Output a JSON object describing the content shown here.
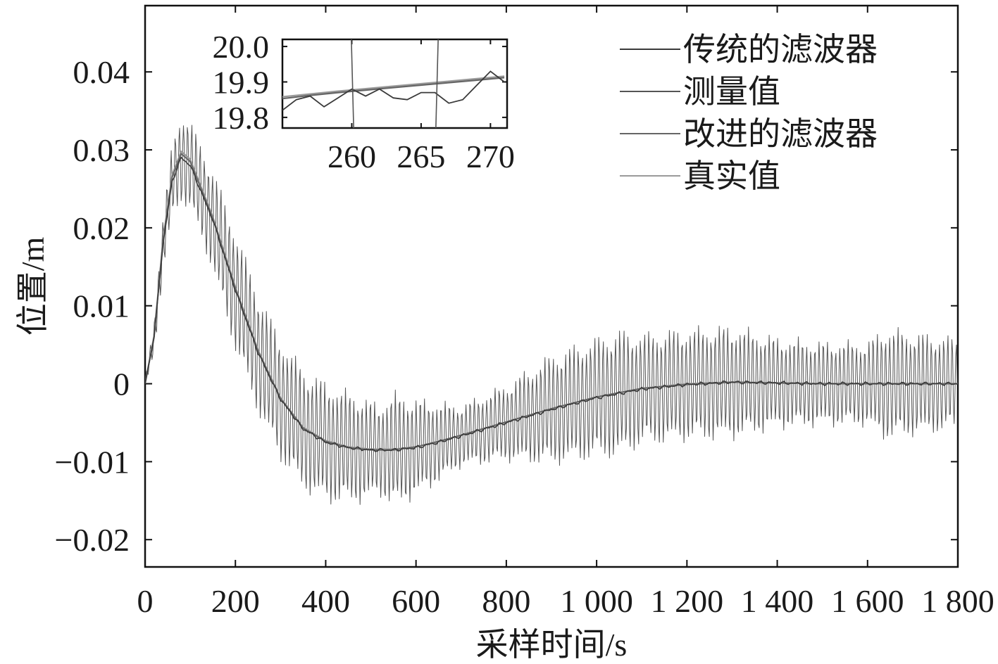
{
  "chart_data": [
    {
      "type": "line",
      "title": "",
      "xlabel": "采样时间/s",
      "ylabel": "位置/m",
      "xlim": [
        0,
        1800
      ],
      "ylim": [
        -0.0235,
        0.0485
      ],
      "x_ticks": [
        0,
        200,
        400,
        600,
        800,
        1000,
        1200,
        1400,
        1600,
        1800
      ],
      "x_tick_labels": [
        "0",
        "200",
        "400",
        "600",
        "800",
        "1 000",
        "1 200",
        "1 400",
        "1 600",
        "1 800"
      ],
      "y_ticks": [
        0.04,
        0.03,
        0.02,
        0.01,
        0,
        -0.01,
        -0.02
      ],
      "y_tick_labels": [
        "0.04",
        "0.03",
        "0.02",
        "0.01",
        "0",
        "−0.01",
        "−0.02"
      ],
      "grid": false,
      "legend_position": "top-right",
      "series": [
        {
          "name": "传统的滤波器",
          "color": "#3a3a3a",
          "x": [
            0,
            20,
            40,
            60,
            80,
            100,
            150,
            200,
            250,
            300,
            350,
            400,
            450,
            500,
            550,
            600,
            650,
            700,
            800,
            900,
            1000,
            1100,
            1200,
            1300,
            1400,
            1500,
            1600,
            1700,
            1800
          ],
          "y": [
            0,
            0.006,
            0.018,
            0.026,
            0.029,
            0.028,
            0.021,
            0.012,
            0.004,
            -0.002,
            -0.0058,
            -0.0075,
            -0.0082,
            -0.0085,
            -0.0085,
            -0.0082,
            -0.0075,
            -0.0067,
            -0.005,
            -0.0033,
            -0.0018,
            -0.0007,
            -0.0001,
            0.0002,
            0.0001,
            0.0,
            0.0,
            0.0,
            0.0
          ]
        },
        {
          "name": "测量值",
          "color": "#555555",
          "x": [
            0,
            20,
            40,
            60,
            80,
            100,
            150,
            200,
            250,
            300,
            350,
            400,
            450,
            500,
            550,
            600,
            650,
            700,
            800,
            900,
            1000,
            1100,
            1200,
            1300,
            1400,
            1500,
            1600,
            1700,
            1800
          ],
          "y": [
            0,
            0.006,
            0.018,
            0.026,
            0.029,
            0.028,
            0.021,
            0.012,
            0.004,
            -0.002,
            -0.0058,
            -0.0075,
            -0.0082,
            -0.0085,
            -0.0085,
            -0.0082,
            -0.0075,
            -0.0067,
            -0.005,
            -0.0033,
            -0.0018,
            -0.0007,
            -0.0001,
            0.0002,
            0.0001,
            0.0,
            0.0,
            0.0,
            0.0
          ],
          "oscillation_amplitude": {
            "x": [
              0,
              40,
              80,
              120,
              200,
              300,
              400,
              480,
              520,
              550,
              620,
              700,
              800,
              900,
              1000,
              1050,
              1100,
              1200,
              1300,
              1400,
              1500,
              1600,
              1640,
              1700,
              1800
            ],
            "a": [
              0.0005,
              0.004,
              0.006,
              0.0062,
              0.0082,
              0.0083,
              0.0082,
              0.0072,
              0.0062,
              0.0078,
              0.0062,
              0.0042,
              0.0052,
              0.0075,
              0.0082,
              0.0086,
              0.0076,
              0.0076,
              0.0077,
              0.0062,
              0.0057,
              0.0057,
              0.0076,
              0.007,
              0.0062
            ]
          }
        },
        {
          "name": "改进的滤波器",
          "color": "#666666",
          "x": [
            0,
            20,
            40,
            60,
            80,
            100,
            150,
            200,
            250,
            300,
            350,
            400,
            450,
            500,
            550,
            600,
            650,
            700,
            800,
            900,
            1000,
            1100,
            1200,
            1300,
            1400,
            1500,
            1600,
            1700,
            1800
          ],
          "y": [
            0,
            0.006,
            0.0185,
            0.0265,
            0.0295,
            0.0285,
            0.0212,
            0.0122,
            0.0042,
            -0.0019,
            -0.0057,
            -0.0074,
            -0.0082,
            -0.0085,
            -0.0085,
            -0.0081,
            -0.0074,
            -0.0066,
            -0.0049,
            -0.0032,
            -0.0017,
            -0.0006,
            -0.0001,
            0.0002,
            0.0001,
            0.0,
            0.0,
            0.0,
            0.0
          ]
        },
        {
          "name": "真实值",
          "color": "#9a9a9a",
          "x": [
            0,
            20,
            40,
            60,
            80,
            100,
            150,
            200,
            250,
            300,
            350,
            400,
            450,
            500,
            550,
            600,
            650,
            700,
            800,
            900,
            1000,
            1100,
            1200,
            1300,
            1400,
            1500,
            1600,
            1700,
            1800
          ],
          "y": [
            0,
            0.0062,
            0.0185,
            0.0268,
            0.0298,
            0.0288,
            0.0214,
            0.0124,
            0.0043,
            -0.0018,
            -0.0056,
            -0.0073,
            -0.0081,
            -0.0084,
            -0.0084,
            -0.0081,
            -0.0074,
            -0.0066,
            -0.0049,
            -0.0032,
            -0.0017,
            -0.0006,
            0.0,
            0.0002,
            0.0001,
            0.0,
            0.0,
            0.0,
            0.0
          ]
        }
      ]
    },
    {
      "type": "line",
      "title": "",
      "xlabel": "",
      "ylabel": "",
      "xlim": [
        255,
        271.2
      ],
      "ylim": [
        19.77,
        20.02
      ],
      "x_ticks": [
        260,
        265,
        270
      ],
      "x_tick_labels": [
        "260",
        "265",
        "270"
      ],
      "y_ticks": [
        20.0,
        19.9,
        19.8
      ],
      "y_tick_labels": [
        "20.0",
        "19.9",
        "19.8"
      ],
      "grid": false,
      "series": [
        {
          "name": "传统的滤波器",
          "color": "#3a3a3a",
          "x": [
            255,
            256,
            257,
            258,
            259,
            260,
            261,
            262,
            263,
            264,
            265,
            266,
            267,
            268,
            269,
            270,
            271
          ],
          "y": [
            19.82,
            19.85,
            19.86,
            19.83,
            19.855,
            19.88,
            19.86,
            19.88,
            19.855,
            19.85,
            19.87,
            19.87,
            19.84,
            19.85,
            19.89,
            19.93,
            19.9
          ]
        },
        {
          "name": "测量值",
          "color": "#555555",
          "x": [
            259.85,
            260.25,
            265.95,
            266.35
          ],
          "y": [
            20.2,
            19.6,
            19.6,
            20.2
          ]
        },
        {
          "name": "改进的滤波器",
          "color": "#666666",
          "x": [
            255,
            257,
            259,
            261,
            263,
            265,
            267,
            269,
            271
          ],
          "y": [
            19.853,
            19.862,
            19.87,
            19.877,
            19.884,
            19.891,
            19.898,
            19.905,
            19.912
          ]
        },
        {
          "name": "真实值",
          "color": "#9a9a9a",
          "x": [
            255,
            257,
            259,
            261,
            263,
            265,
            267,
            269,
            271
          ],
          "y": [
            19.858,
            19.866,
            19.874,
            19.881,
            19.888,
            19.895,
            19.902,
            19.909,
            19.916
          ]
        }
      ]
    }
  ]
}
